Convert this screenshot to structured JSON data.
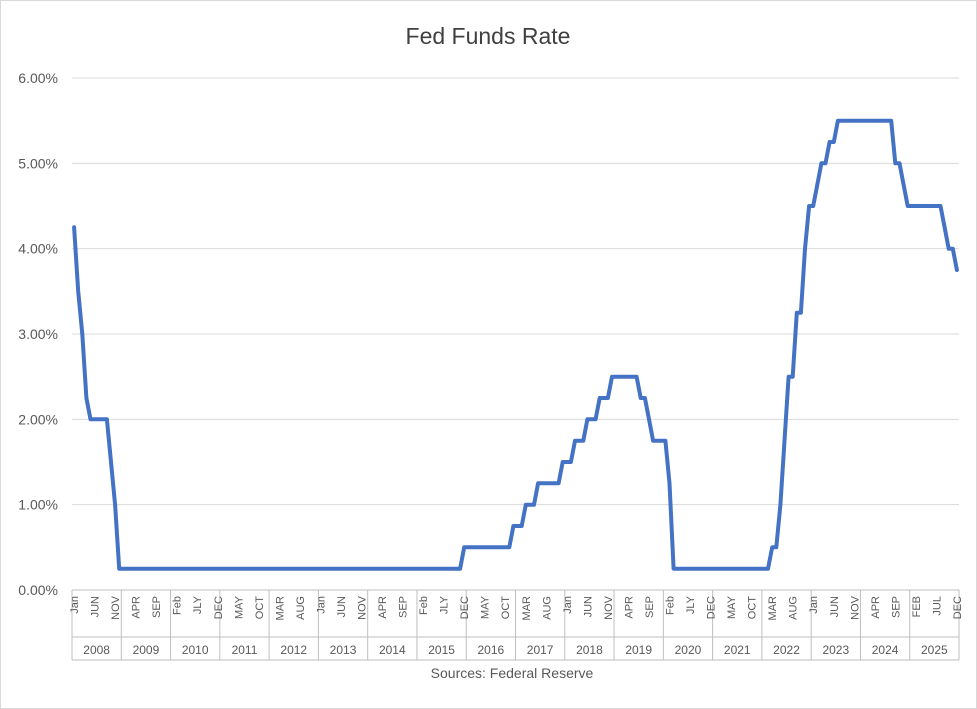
{
  "chart_data": {
    "type": "line",
    "title": "Fed Funds Rate",
    "source": "Sources: Federal Reserve",
    "ylim": [
      0,
      6
    ],
    "xlim": [
      "2008-01",
      "2025-12"
    ],
    "yticks": [
      "0.00%",
      "1.00%",
      "2.00%",
      "3.00%",
      "4.00%",
      "5.00%",
      "6.00%"
    ],
    "grid": true,
    "legend": "none",
    "line_color": "#4472c4",
    "years": [
      "2008",
      "2009",
      "2010",
      "2011",
      "2012",
      "2013",
      "2014",
      "2015",
      "2016",
      "2017",
      "2018",
      "2019",
      "2020",
      "2021",
      "2022",
      "2023",
      "2024",
      "2025"
    ],
    "tick_labels": [
      {
        "label": "Jan",
        "date": "2008-01"
      },
      {
        "label": "JUN",
        "date": "2008-06"
      },
      {
        "label": "NOV",
        "date": "2008-11"
      },
      {
        "label": "APR",
        "date": "2009-04"
      },
      {
        "label": "SEP",
        "date": "2009-09"
      },
      {
        "label": "Feb",
        "date": "2010-02"
      },
      {
        "label": "JLY",
        "date": "2010-07"
      },
      {
        "label": "DEC",
        "date": "2010-12"
      },
      {
        "label": "MAY",
        "date": "2011-05"
      },
      {
        "label": "OCT",
        "date": "2011-10"
      },
      {
        "label": "MAR",
        "date": "2012-03"
      },
      {
        "label": "AUG",
        "date": "2012-08"
      },
      {
        "label": "Jan",
        "date": "2013-01"
      },
      {
        "label": "JUN",
        "date": "2013-06"
      },
      {
        "label": "NOV",
        "date": "2013-11"
      },
      {
        "label": "APR",
        "date": "2014-04"
      },
      {
        "label": "SEP",
        "date": "2014-09"
      },
      {
        "label": "Feb",
        "date": "2015-02"
      },
      {
        "label": "JLY",
        "date": "2015-07"
      },
      {
        "label": "DEC",
        "date": "2015-12"
      },
      {
        "label": "MAY",
        "date": "2016-05"
      },
      {
        "label": "OCT",
        "date": "2016-10"
      },
      {
        "label": "MAR",
        "date": "2017-03"
      },
      {
        "label": "AUG",
        "date": "2017-08"
      },
      {
        "label": "Jan",
        "date": "2018-01"
      },
      {
        "label": "JUN",
        "date": "2018-06"
      },
      {
        "label": "NOV",
        "date": "2018-11"
      },
      {
        "label": "APR",
        "date": "2019-04"
      },
      {
        "label": "SEP",
        "date": "2019-09"
      },
      {
        "label": "Feb",
        "date": "2020-02"
      },
      {
        "label": "JLY",
        "date": "2020-07"
      },
      {
        "label": "DEC",
        "date": "2020-12"
      },
      {
        "label": "MAY",
        "date": "2021-05"
      },
      {
        "label": "OCT",
        "date": "2021-10"
      },
      {
        "label": "MAR",
        "date": "2022-03"
      },
      {
        "label": "AUG",
        "date": "2022-08"
      },
      {
        "label": "Jan",
        "date": "2023-01"
      },
      {
        "label": "JUN",
        "date": "2023-06"
      },
      {
        "label": "NOV",
        "date": "2023-11"
      },
      {
        "label": "APR",
        "date": "2024-04"
      },
      {
        "label": "SEP",
        "date": "2024-09"
      },
      {
        "label": "FEB",
        "date": "2025-02"
      },
      {
        "label": "JUL",
        "date": "2025-07"
      },
      {
        "label": "DEC",
        "date": "2025-12"
      }
    ],
    "series": [
      {
        "points": [
          [
            "2008-01",
            4.25
          ],
          [
            "2008-02",
            3.5
          ],
          [
            "2008-03",
            3.0
          ],
          [
            "2008-04",
            2.25
          ],
          [
            "2008-05",
            2.0
          ],
          [
            "2008-09",
            2.0
          ],
          [
            "2008-10",
            1.5
          ],
          [
            "2008-11",
            1.0
          ],
          [
            "2008-12",
            0.25
          ],
          [
            "2015-11",
            0.25
          ],
          [
            "2015-12",
            0.5
          ],
          [
            "2016-11",
            0.5
          ],
          [
            "2016-12",
            0.75
          ],
          [
            "2017-02",
            0.75
          ],
          [
            "2017-03",
            1.0
          ],
          [
            "2017-05",
            1.0
          ],
          [
            "2017-06",
            1.25
          ],
          [
            "2017-11",
            1.25
          ],
          [
            "2017-12",
            1.5
          ],
          [
            "2018-02",
            1.5
          ],
          [
            "2018-03",
            1.75
          ],
          [
            "2018-05",
            1.75
          ],
          [
            "2018-06",
            2.0
          ],
          [
            "2018-08",
            2.0
          ],
          [
            "2018-09",
            2.25
          ],
          [
            "2018-11",
            2.25
          ],
          [
            "2018-12",
            2.5
          ],
          [
            "2019-06",
            2.5
          ],
          [
            "2019-07",
            2.25
          ],
          [
            "2019-08",
            2.25
          ],
          [
            "2019-09",
            2.0
          ],
          [
            "2019-10",
            1.75
          ],
          [
            "2020-01",
            1.75
          ],
          [
            "2020-02",
            1.25
          ],
          [
            "2020-03",
            0.25
          ],
          [
            "2022-02",
            0.25
          ],
          [
            "2022-03",
            0.5
          ],
          [
            "2022-04",
            0.5
          ],
          [
            "2022-05",
            1.0
          ],
          [
            "2022-06",
            1.75
          ],
          [
            "2022-07",
            2.5
          ],
          [
            "2022-08",
            2.5
          ],
          [
            "2022-09",
            3.25
          ],
          [
            "2022-10",
            3.25
          ],
          [
            "2022-11",
            4.0
          ],
          [
            "2022-12",
            4.5
          ],
          [
            "2023-01",
            4.5
          ],
          [
            "2023-02",
            4.75
          ],
          [
            "2023-03",
            5.0
          ],
          [
            "2023-04",
            5.0
          ],
          [
            "2023-05",
            5.25
          ],
          [
            "2023-06",
            5.25
          ],
          [
            "2023-07",
            5.5
          ],
          [
            "2024-08",
            5.5
          ],
          [
            "2024-09",
            5.0
          ],
          [
            "2024-10",
            5.0
          ],
          [
            "2024-11",
            4.75
          ],
          [
            "2024-12",
            4.5
          ],
          [
            "2025-08",
            4.5
          ],
          [
            "2025-09",
            4.25
          ],
          [
            "2025-10",
            4.0
          ],
          [
            "2025-11",
            4.0
          ],
          [
            "2025-12",
            3.75
          ]
        ]
      }
    ]
  }
}
